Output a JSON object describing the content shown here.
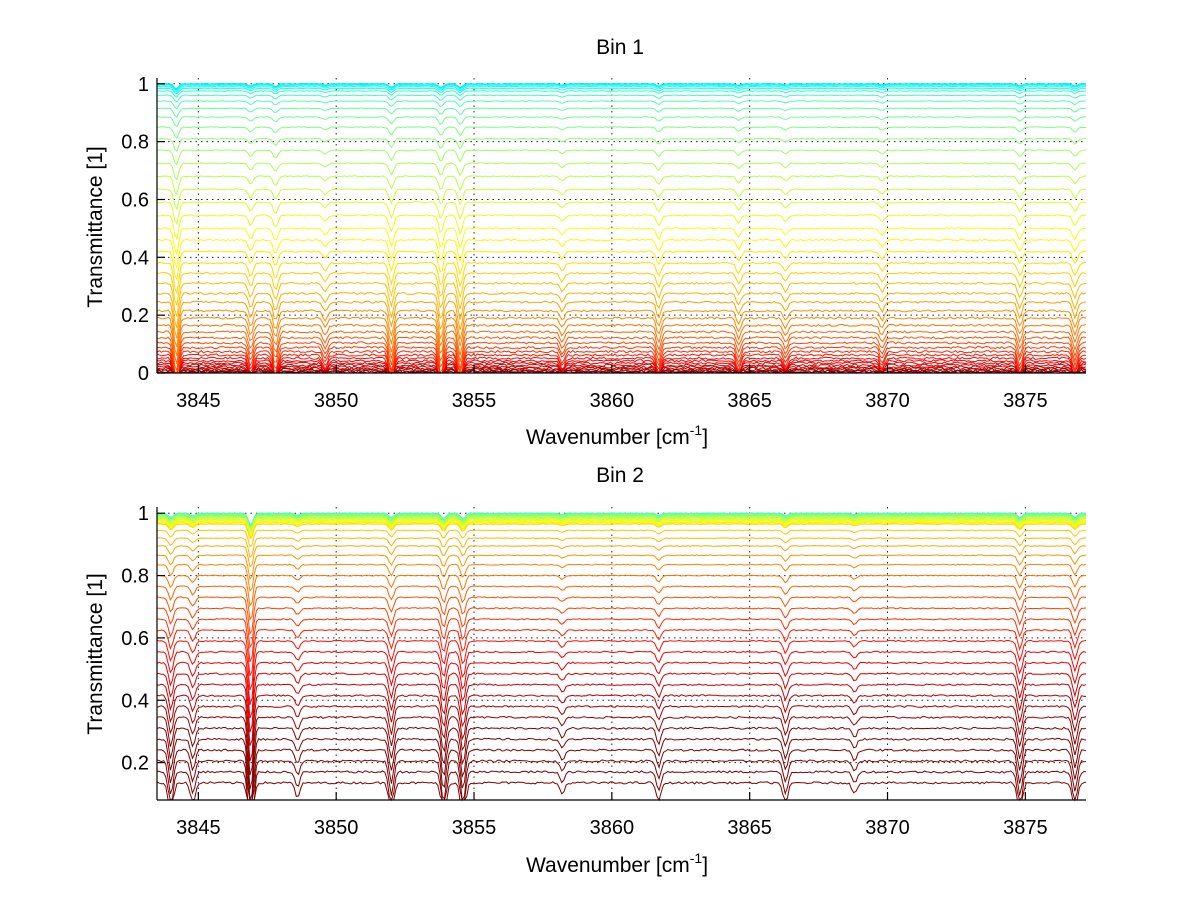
{
  "chart_data": [
    {
      "type": "line",
      "title": "Bin 1",
      "xlabel": "Wavenumber [cm",
      "xlabel_sup": "-1",
      "xlabel_end": "]",
      "ylabel": "Transmittance [1]",
      "xlim": [
        3843.5,
        3877.2
      ],
      "ylim": [
        0,
        1.02
      ],
      "xticks": [
        3845,
        3850,
        3855,
        3860,
        3865,
        3870,
        3875
      ],
      "xtick_labels": [
        "3845",
        "3850",
        "3855",
        "3860",
        "3865",
        "3870",
        "3875"
      ],
      "yticks": [
        0,
        0.2,
        0.4,
        0.6,
        0.8,
        1
      ],
      "ytick_labels": [
        "0",
        "0.2",
        "0.4",
        "0.6",
        "0.8",
        "1"
      ],
      "grid": true,
      "series_count": 45,
      "baseline_levels": [
        1.0,
        0.998,
        0.995,
        0.99,
        0.984,
        0.975,
        0.96,
        0.94,
        0.915,
        0.885,
        0.85,
        0.81,
        0.77,
        0.725,
        0.68,
        0.635,
        0.59,
        0.545,
        0.5,
        0.46,
        0.42,
        0.38,
        0.345,
        0.31,
        0.275,
        0.245,
        0.215,
        0.19,
        0.165,
        0.142,
        0.122,
        0.104,
        0.088,
        0.074,
        0.062,
        0.051,
        0.042,
        0.034,
        0.027,
        0.021,
        0.016,
        0.012,
        0.008,
        0.005,
        0.002
      ],
      "absorption_lines": [
        {
          "x": 3844.2,
          "depth": 0.12
        },
        {
          "x": 3846.9,
          "depth": 0.05
        },
        {
          "x": 3847.8,
          "depth": 0.06
        },
        {
          "x": 3849.6,
          "depth": 0.03
        },
        {
          "x": 3852.0,
          "depth": 0.08
        },
        {
          "x": 3853.8,
          "depth": 0.09
        },
        {
          "x": 3854.5,
          "depth": 0.09
        },
        {
          "x": 3858.2,
          "depth": 0.03
        },
        {
          "x": 3861.7,
          "depth": 0.05
        },
        {
          "x": 3864.6,
          "depth": 0.04
        },
        {
          "x": 3866.3,
          "depth": 0.03
        },
        {
          "x": 3869.8,
          "depth": 0.03
        },
        {
          "x": 3874.8,
          "depth": 0.05
        },
        {
          "x": 3876.8,
          "depth": 0.05
        }
      ],
      "colormap": "jet"
    },
    {
      "type": "line",
      "title": "Bin 2",
      "xlabel": "Wavenumber [cm",
      "xlabel_sup": "-1",
      "xlabel_end": "]",
      "ylabel": "Transmittance [1]",
      "xlim": [
        3843.5,
        3877.2
      ],
      "ylim": [
        0.08,
        1.02
      ],
      "xticks": [
        3845,
        3850,
        3855,
        3860,
        3865,
        3870,
        3875
      ],
      "xtick_labels": [
        "3845",
        "3850",
        "3855",
        "3860",
        "3865",
        "3870",
        "3875"
      ],
      "yticks": [
        0.2,
        0.4,
        0.6,
        0.8,
        1
      ],
      "ytick_labels": [
        "0.2",
        "0.4",
        "0.6",
        "0.8",
        "1"
      ],
      "grid": true,
      "series_count": 40,
      "baseline_levels": [
        1.0,
        0.999,
        0.998,
        0.996,
        0.994,
        0.992,
        0.99,
        0.987,
        0.984,
        0.981,
        0.978,
        0.975,
        0.972,
        0.969,
        0.965,
        0.945,
        0.92,
        0.895,
        0.865,
        0.835,
        0.8,
        0.765,
        0.73,
        0.695,
        0.66,
        0.625,
        0.59,
        0.555,
        0.52,
        0.485,
        0.45,
        0.415,
        0.38,
        0.345,
        0.31,
        0.275,
        0.24,
        0.205,
        0.17,
        0.135
      ],
      "absorption_lines": [
        {
          "x": 3844.0,
          "depth": 0.1
        },
        {
          "x": 3844.8,
          "depth": 0.06
        },
        {
          "x": 3846.9,
          "depth": 0.26
        },
        {
          "x": 3848.6,
          "depth": 0.04
        },
        {
          "x": 3852.0,
          "depth": 0.1
        },
        {
          "x": 3853.9,
          "depth": 0.12
        },
        {
          "x": 3854.6,
          "depth": 0.12
        },
        {
          "x": 3858.2,
          "depth": 0.03
        },
        {
          "x": 3861.7,
          "depth": 0.05
        },
        {
          "x": 3866.3,
          "depth": 0.06
        },
        {
          "x": 3868.8,
          "depth": 0.03
        },
        {
          "x": 3874.8,
          "depth": 0.1
        },
        {
          "x": 3876.8,
          "depth": 0.09
        }
      ],
      "colormap": "jet"
    }
  ]
}
